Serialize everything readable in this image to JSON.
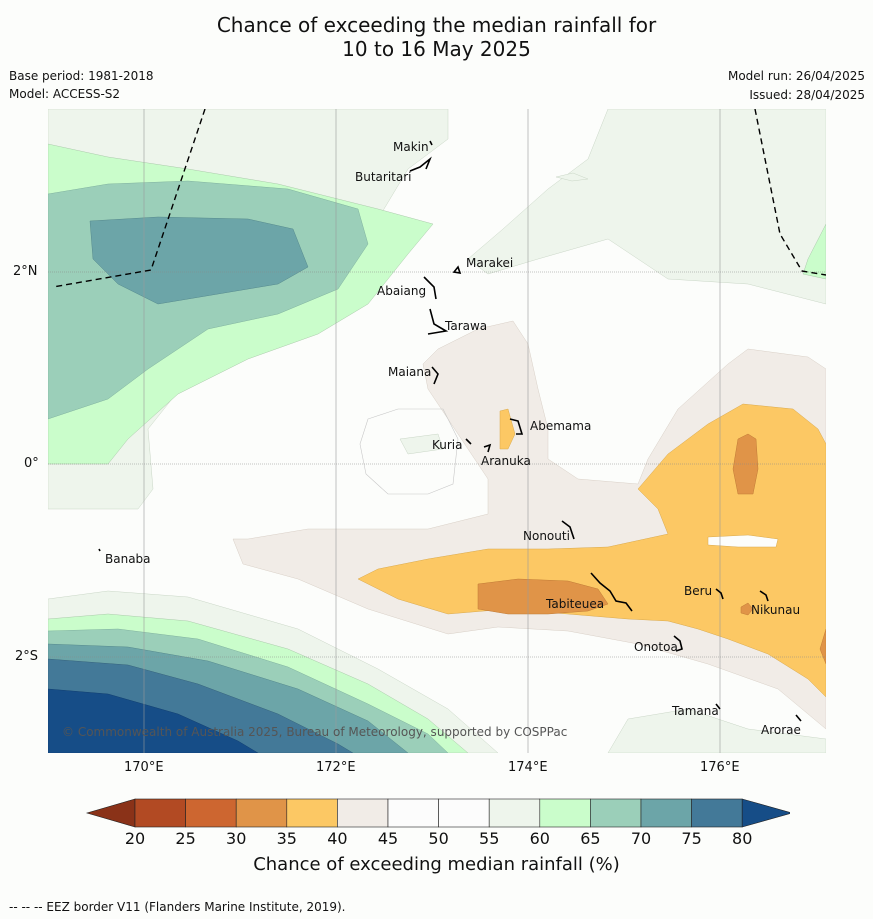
{
  "header": {
    "title_line1": "Chance of exceeding the median rainfall for",
    "title_line2": "10 to 16 May 2025",
    "base_period": "Base period: 1981-2018",
    "model": "Model: ACCESS-S2",
    "model_run": "Model run: 26/04/2025",
    "issued": "Issued: 28/04/2025"
  },
  "map": {
    "lat_labels": [
      "2°N",
      "0°",
      "2°S"
    ],
    "lon_labels": [
      "170°E",
      "172°E",
      "174°E",
      "176°E"
    ],
    "places": [
      "Makin",
      "Butaritari",
      "Marakei",
      "Abaiang",
      "Tarawa",
      "Maiana",
      "Abemama",
      "Kuria",
      "Aranuka",
      "Nonouti",
      "Banaba",
      "Beru",
      "Tabiteuea",
      "Nikunau",
      "Onotoa",
      "Tamana",
      "Arorae"
    ],
    "copyright": "© Commonwealth of Australia 2025, Bureau of Meteorology, supported by COSPPac"
  },
  "colorbar": {
    "ticks": [
      "20",
      "25",
      "30",
      "35",
      "40",
      "45",
      "50",
      "55",
      "60",
      "65",
      "70",
      "75",
      "80"
    ],
    "colors": [
      "#b24a23",
      "#cd6630",
      "#e09448",
      "#fcc864",
      "#f1ece7",
      "#fcfcfc",
      "#fcfcfc",
      "#eef5ec",
      "#cafdcb",
      "#9bcfb9",
      "#6ca5a8",
      "#437998"
    ],
    "under_color": "#8a3218",
    "over_color": "#164d87",
    "label": "Chance of exceeding median rainfall (%)"
  },
  "footer": "-- -- -- EEZ border V11 (Flanders Marine Institute, 2019)."
}
